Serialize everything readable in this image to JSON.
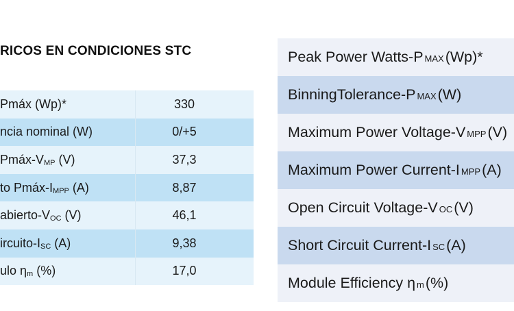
{
  "left": {
    "title": "RICOS EN CONDICIONES STC",
    "rows": [
      {
        "pre": "Pmáx (Wp)*",
        "sub": "",
        "post": "",
        "value": "330"
      },
      {
        "pre": "ncia nominal (W)",
        "sub": "",
        "post": "",
        "value": "0/+5"
      },
      {
        "pre": "Pmáx-V",
        "sub": "MP",
        "post": " (V)",
        "value": "37,3"
      },
      {
        "pre": "to Pmáx-I",
        "sub": "MPP",
        "post": " (A)",
        "value": "8,87"
      },
      {
        "pre": "abierto-V",
        "sub": "OC",
        "post": " (V)",
        "value": "46,1"
      },
      {
        "pre": "ircuito-I",
        "sub": "SC",
        "post": " (A)",
        "value": "9,38"
      },
      {
        "pre": "ulo η",
        "sub": "m",
        "post": " (%)",
        "value": "17,0"
      }
    ]
  },
  "right": {
    "rows": [
      {
        "pre": "Peak Power Watts-P",
        "sub": "MAX",
        "post": " (Wp)*"
      },
      {
        "pre": "BinningTolerance-P",
        "sub": "MAX",
        "post": " (W)"
      },
      {
        "pre": "Maximum Power Voltage-V",
        "sub": "MPP",
        "post": " (V)"
      },
      {
        "pre": "Maximum Power Current-I",
        "sub": "MPP",
        "post": " (A)"
      },
      {
        "pre": "Open Circuit Voltage-V",
        "sub": "OC",
        "post": " (V)"
      },
      {
        "pre": "Short Circuit Current-I",
        "sub": "SC",
        "post": " (A)"
      },
      {
        "pre": "Module Efficiency  η",
        "sub": "m",
        "post": " (%)"
      }
    ]
  }
}
